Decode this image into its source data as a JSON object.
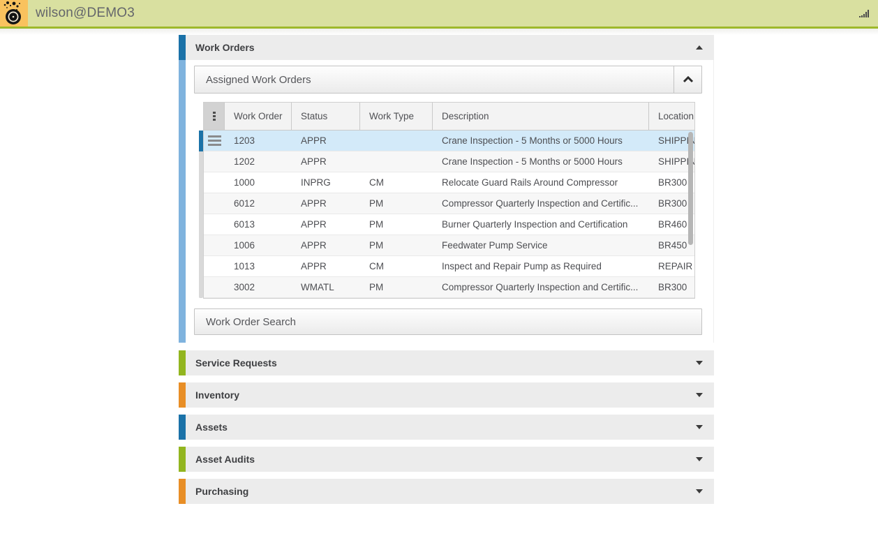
{
  "topbar": {
    "title": "wilson@DEMO3",
    "logo_icon": "maximo-logo-icon",
    "signal_icon": "signal-strength-icon",
    "colors": {
      "bar_bg": "#d9e0a0",
      "bar_border": "#9eb92b",
      "logo_bg": "#f9c25e"
    }
  },
  "work_orders": {
    "label": "Work Orders",
    "accent_color": "#1b72a8",
    "body_accent_color": "#7fb3de",
    "expanded": true,
    "assigned_button": {
      "label": "Assigned Work Orders",
      "collapse_icon": "chevron-up-icon"
    },
    "search_button": {
      "label": "Work Order Search"
    },
    "table": {
      "columns": [
        {
          "key": "work_order",
          "label": "Work Order"
        },
        {
          "key": "status",
          "label": "Status"
        },
        {
          "key": "work_type",
          "label": "Work Type"
        },
        {
          "key": "description",
          "label": "Description"
        },
        {
          "key": "location",
          "label": "Location"
        }
      ],
      "rows": [
        {
          "work_order": "1203",
          "status": "APPR",
          "work_type": "",
          "description": "Crane Inspection - 5 Months or 5000 Hours",
          "location": "SHIPPING",
          "selected": true
        },
        {
          "work_order": "1202",
          "status": "APPR",
          "work_type": "",
          "description": "Crane Inspection - 5 Months or 5000 Hours",
          "location": "SHIPPING",
          "selected": false
        },
        {
          "work_order": "1000",
          "status": "INPRG",
          "work_type": "CM",
          "description": "Relocate Guard Rails Around Compressor",
          "location": "BR300",
          "selected": false
        },
        {
          "work_order": "6012",
          "status": "APPR",
          "work_type": "PM",
          "description": "Compressor Quarterly Inspection and Certific...",
          "location": "BR300",
          "selected": false
        },
        {
          "work_order": "6013",
          "status": "APPR",
          "work_type": "PM",
          "description": "Burner Quarterly Inspection and Certification",
          "location": "BR460",
          "selected": false
        },
        {
          "work_order": "1006",
          "status": "APPR",
          "work_type": "PM",
          "description": "Feedwater Pump Service",
          "location": "BR450",
          "selected": false
        },
        {
          "work_order": "1013",
          "status": "APPR",
          "work_type": "CM",
          "description": "Inspect and Repair Pump as Required",
          "location": "REPAIR",
          "selected": false
        },
        {
          "work_order": "3002",
          "status": "WMATL",
          "work_type": "PM",
          "description": "Compressor Quarterly Inspection and Certific...",
          "location": "BR300",
          "selected": false
        }
      ]
    }
  },
  "collapsed_sections": [
    {
      "label": "Service Requests",
      "accent_color": "#92b51f"
    },
    {
      "label": "Inventory",
      "accent_color": "#e88e26"
    },
    {
      "label": "Assets",
      "accent_color": "#1b72a8"
    },
    {
      "label": "Asset Audits",
      "accent_color": "#92b51f"
    },
    {
      "label": "Purchasing",
      "accent_color": "#e88e26"
    }
  ]
}
